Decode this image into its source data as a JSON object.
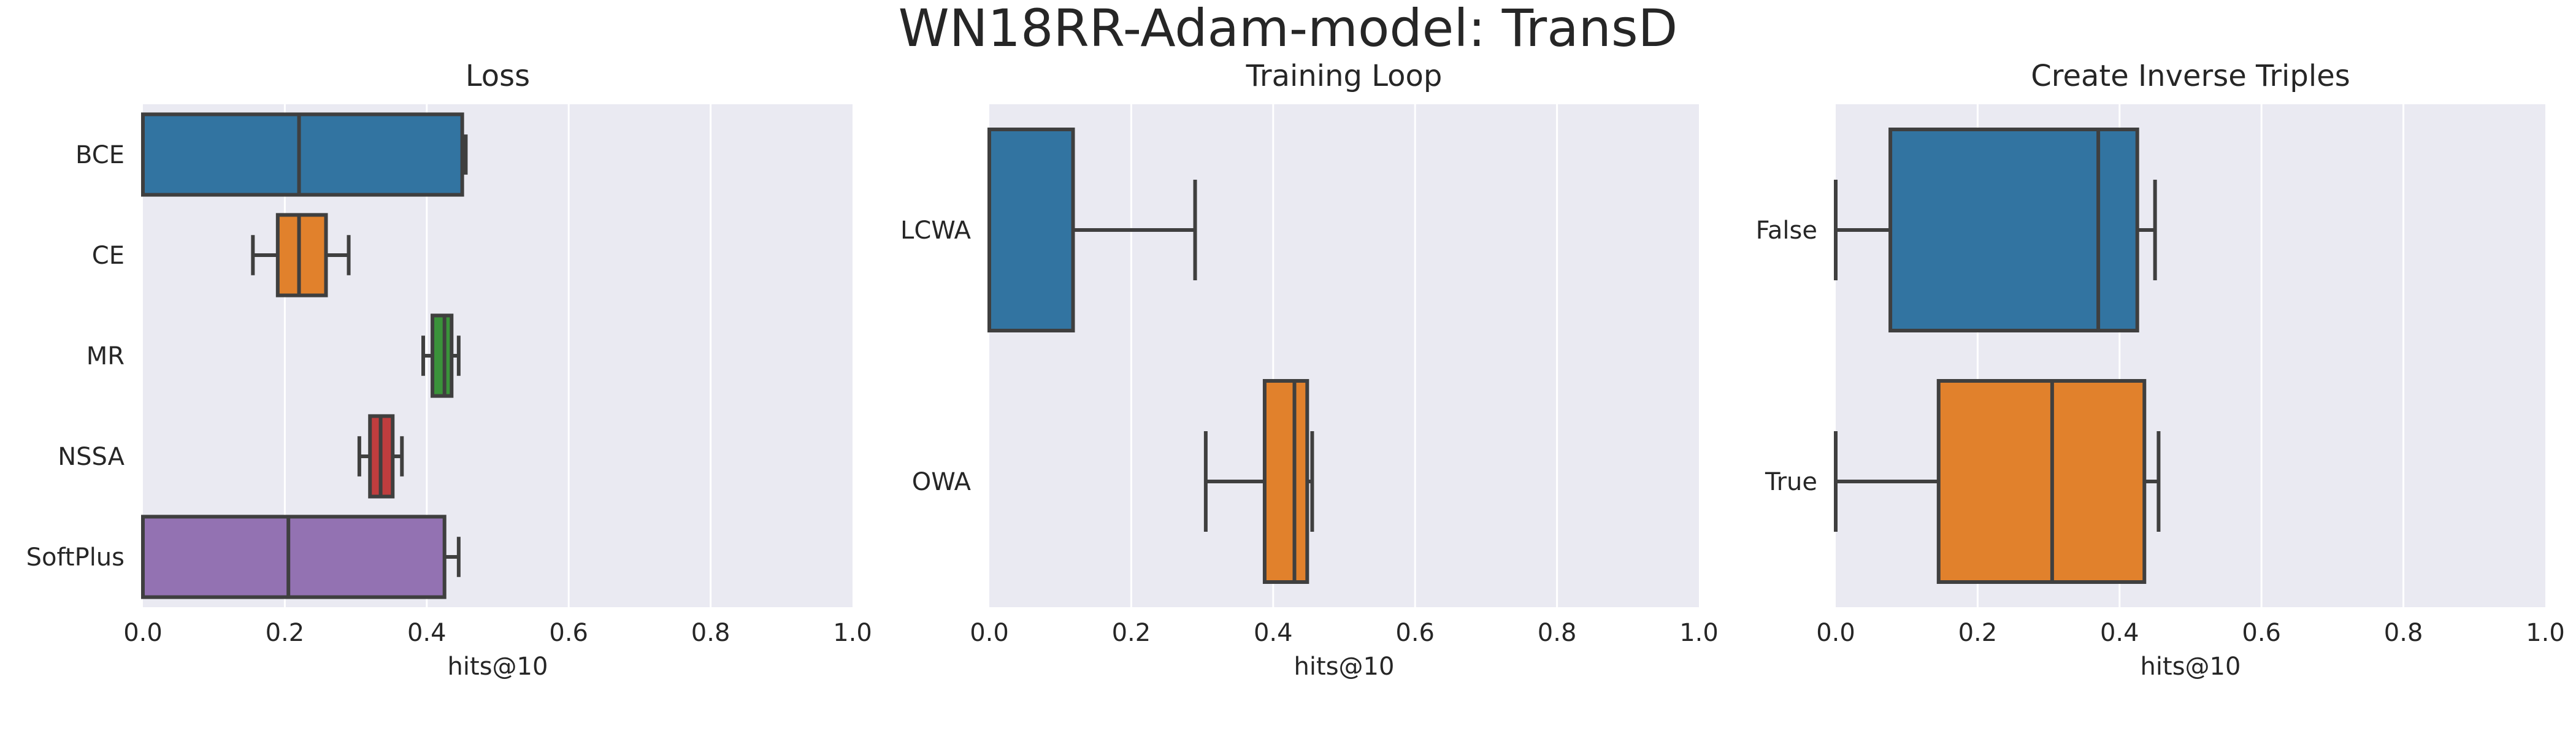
{
  "figure_title": "WN18RR-Adam-model: TransD",
  "colors": {
    "background": "#ffffff",
    "panel_background": "#eaeaf2",
    "grid": "#ffffff",
    "box_edge": "#3f3f3f",
    "text": "#262626"
  },
  "chart_data": [
    {
      "type": "box",
      "orientation": "horizontal",
      "title": "Loss",
      "xlabel": "hits@10",
      "ylabel": "",
      "xlim": [
        0,
        1
      ],
      "xticks": [
        "0.0",
        "0.2",
        "0.4",
        "0.6",
        "0.8",
        "1.0"
      ],
      "grid": true,
      "categories": [
        "BCE",
        "CE",
        "MR",
        "NSSA",
        "SoftPlus"
      ],
      "boxes": [
        {
          "category": "BCE",
          "min": 0.0,
          "q1": 0.0,
          "median": 0.22,
          "q3": 0.45,
          "max": 0.455,
          "color": "#3274a1"
        },
        {
          "category": "CE",
          "min": 0.155,
          "q1": 0.19,
          "median": 0.22,
          "q3": 0.258,
          "max": 0.29,
          "color": "#e1812c"
        },
        {
          "category": "MR",
          "min": 0.395,
          "q1": 0.408,
          "median": 0.425,
          "q3": 0.435,
          "max": 0.445,
          "color": "#3a923a"
        },
        {
          "category": "NSSA",
          "min": 0.305,
          "q1": 0.32,
          "median": 0.335,
          "q3": 0.352,
          "max": 0.365,
          "color": "#c03d3e"
        },
        {
          "category": "SoftPlus",
          "min": 0.0,
          "q1": 0.0,
          "median": 0.205,
          "q3": 0.425,
          "max": 0.445,
          "color": "#9372b2"
        }
      ]
    },
    {
      "type": "box",
      "orientation": "horizontal",
      "title": "Training Loop",
      "xlabel": "hits@10",
      "ylabel": "",
      "xlim": [
        0,
        1
      ],
      "xticks": [
        "0.0",
        "0.2",
        "0.4",
        "0.6",
        "0.8",
        "1.0"
      ],
      "grid": true,
      "categories": [
        "LCWA",
        "OWA"
      ],
      "boxes": [
        {
          "category": "LCWA",
          "min": 0.0,
          "q1": 0.0,
          "median": 0.0,
          "q3": 0.118,
          "max": 0.29,
          "color": "#3274a1"
        },
        {
          "category": "OWA",
          "min": 0.305,
          "q1": 0.388,
          "median": 0.43,
          "q3": 0.448,
          "max": 0.455,
          "color": "#e1812c"
        }
      ]
    },
    {
      "type": "box",
      "orientation": "horizontal",
      "title": "Create Inverse Triples",
      "xlabel": "hits@10",
      "ylabel": "",
      "xlim": [
        0,
        1
      ],
      "xticks": [
        "0.0",
        "0.2",
        "0.4",
        "0.6",
        "0.8",
        "1.0"
      ],
      "grid": true,
      "categories": [
        "False",
        "True"
      ],
      "boxes": [
        {
          "category": "False",
          "min": 0.0,
          "q1": 0.077,
          "median": 0.37,
          "q3": 0.425,
          "max": 0.45,
          "color": "#3274a1"
        },
        {
          "category": "True",
          "min": 0.0,
          "q1": 0.145,
          "median": 0.305,
          "q3": 0.435,
          "max": 0.455,
          "color": "#e1812c"
        }
      ]
    }
  ]
}
